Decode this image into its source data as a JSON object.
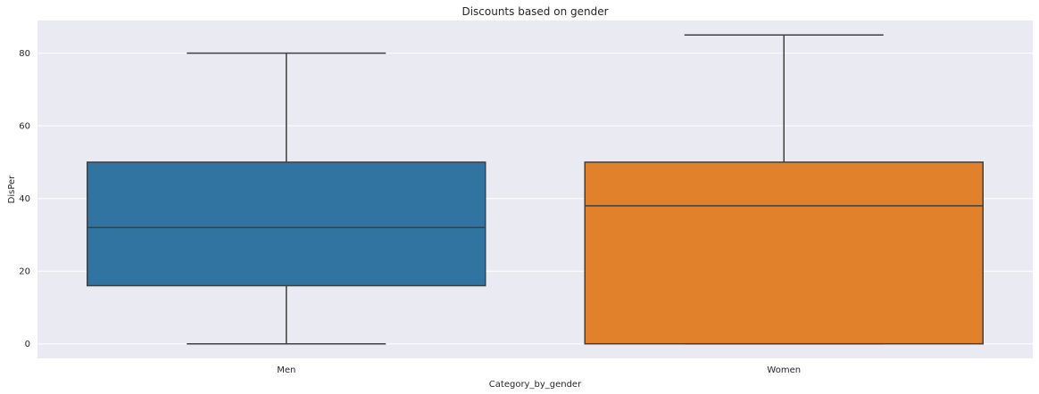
{
  "chart_data": {
    "type": "box",
    "title": "Discounts based on gender",
    "xlabel": "Category_by_gender",
    "ylabel": "DisPer",
    "categories": [
      "Men",
      "Women"
    ],
    "boxes": [
      {
        "category": "Men",
        "min": 0,
        "q1": 16,
        "median": 32,
        "q3": 50,
        "max": 80,
        "color": "#3274a1"
      },
      {
        "category": "Women",
        "min": 0,
        "q1": 0,
        "median": 38,
        "q3": 50,
        "max": 85,
        "color": "#e1812c"
      }
    ],
    "ylim": [
      -4,
      89
    ],
    "yticks": [
      0,
      20,
      40,
      60,
      80
    ],
    "grid": true,
    "background": "#eaeaf2",
    "line_color": "#3f3f3f"
  }
}
